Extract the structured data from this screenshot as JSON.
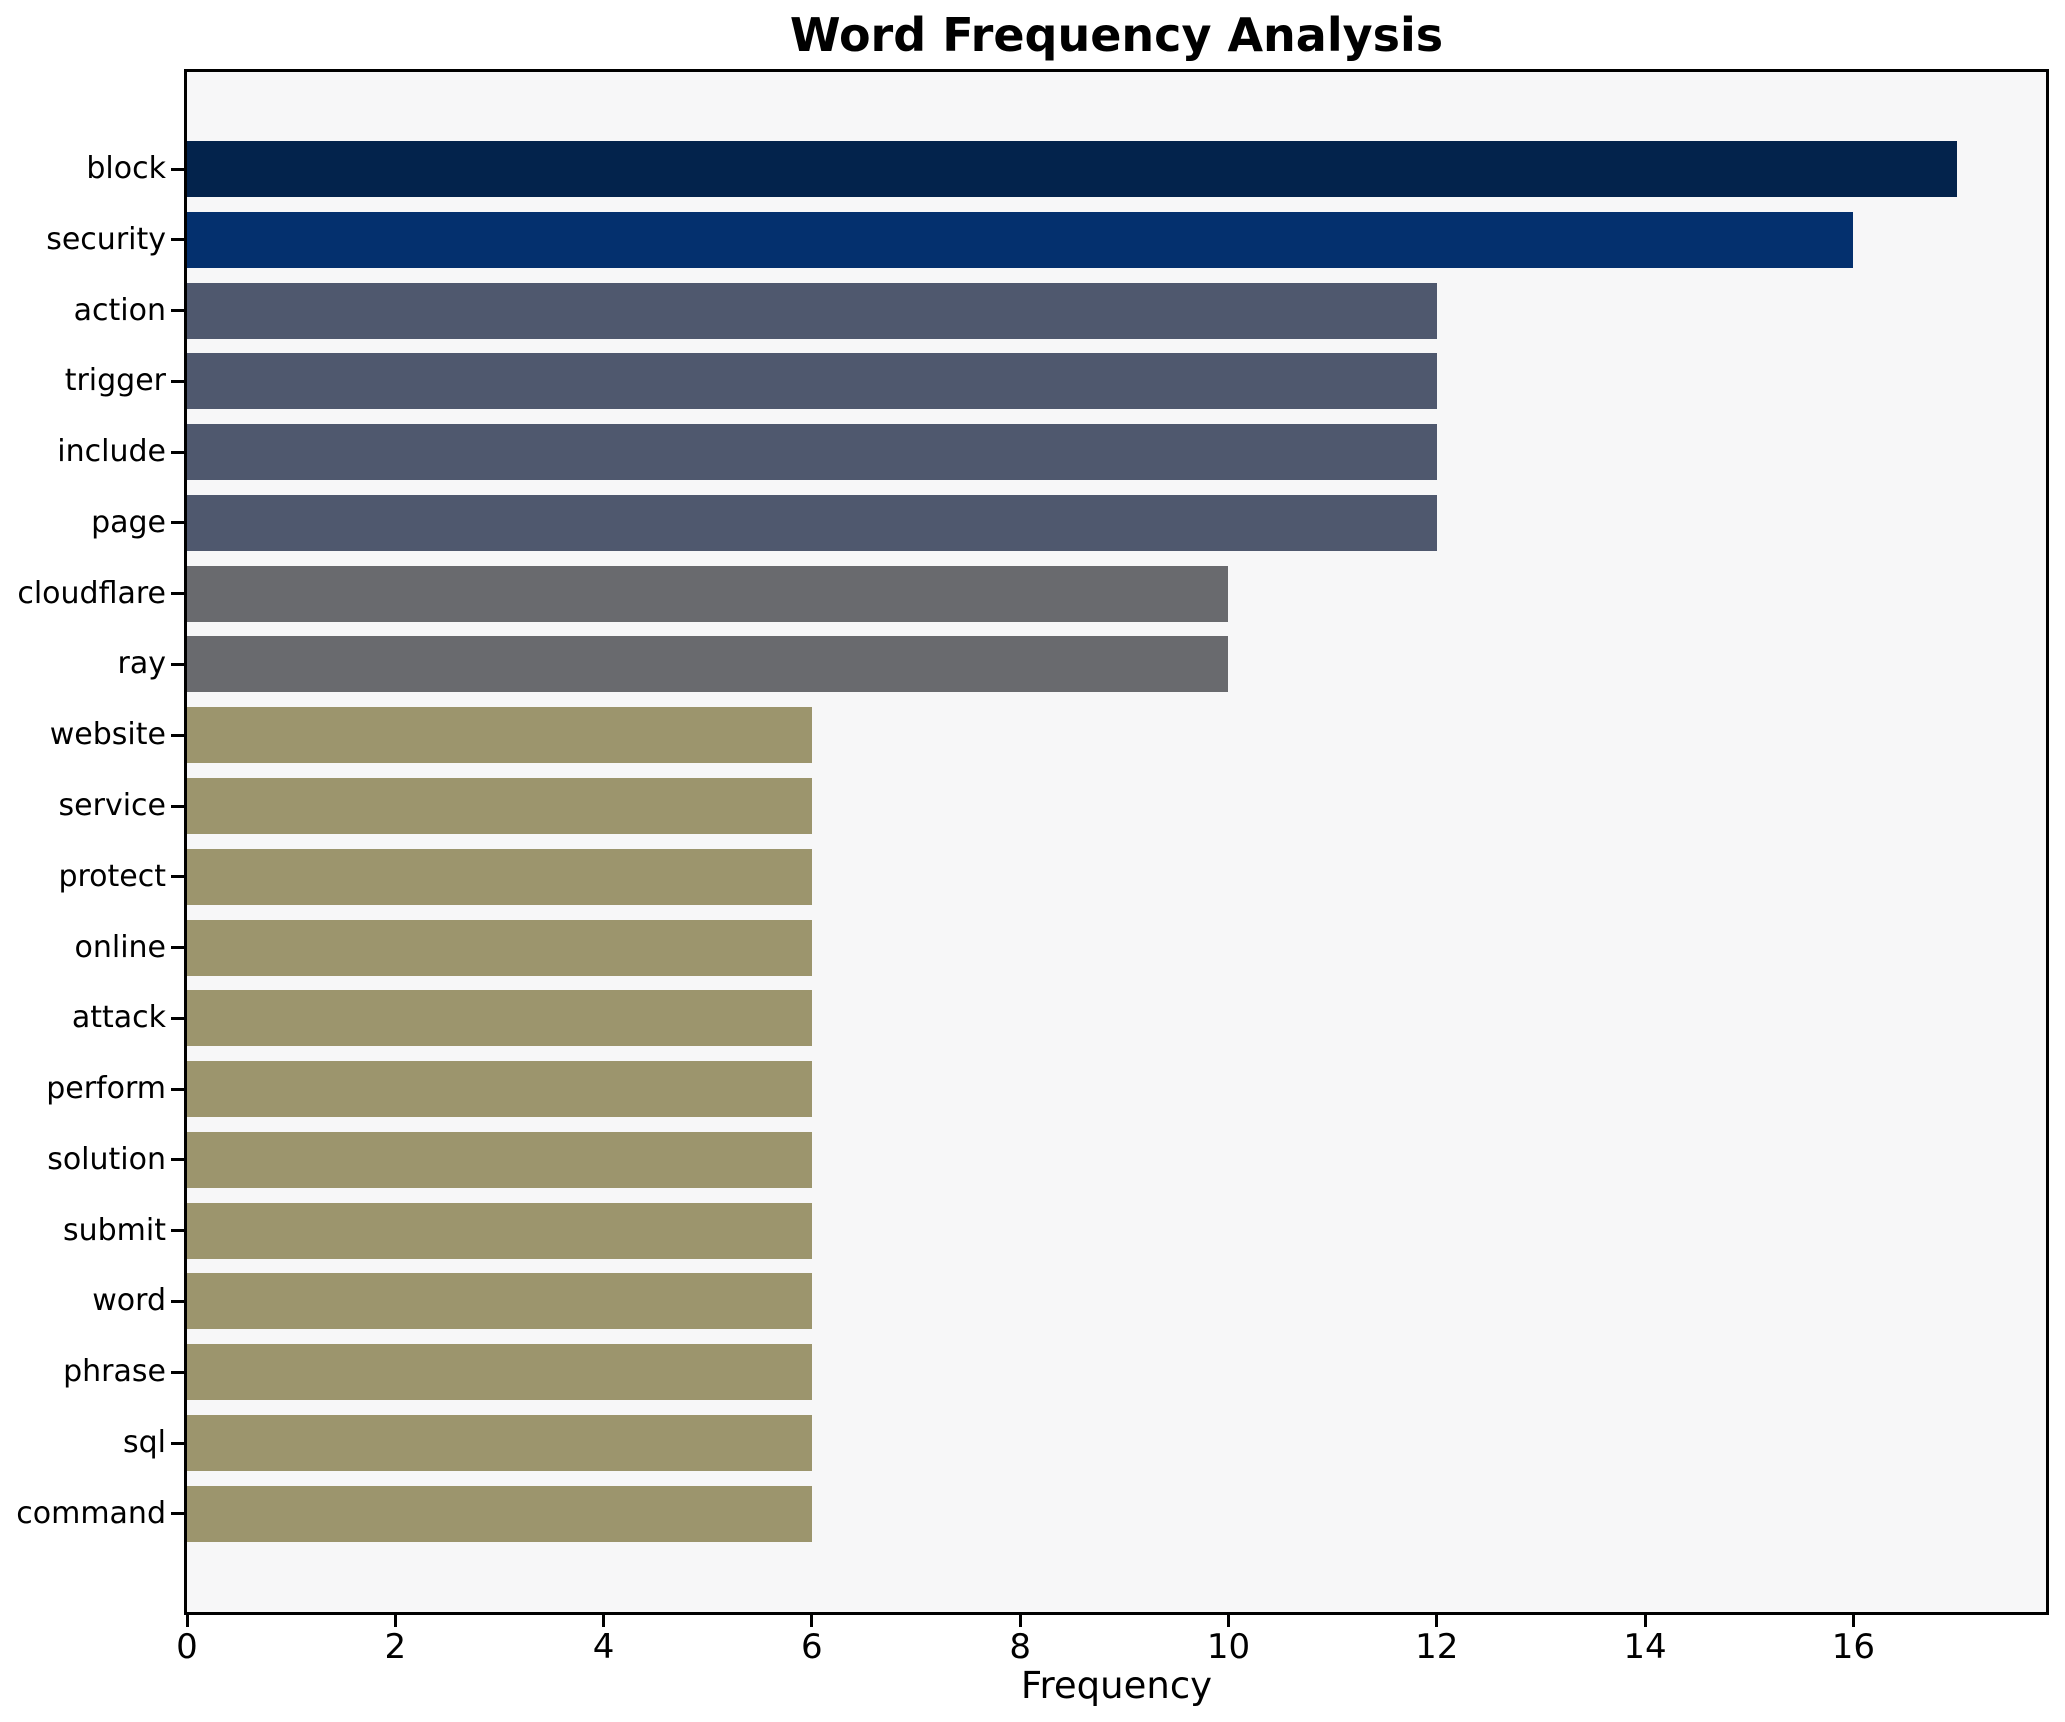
{
  "chart_data": {
    "type": "bar",
    "orientation": "horizontal",
    "title": "Word Frequency Analysis",
    "xlabel": "Frequency",
    "ylabel": "",
    "categories": [
      "block",
      "security",
      "action",
      "trigger",
      "include",
      "page",
      "cloudflare",
      "ray",
      "website",
      "service",
      "protect",
      "online",
      "attack",
      "perform",
      "solution",
      "submit",
      "word",
      "phrase",
      "sql",
      "command"
    ],
    "values": [
      17,
      16,
      12,
      12,
      12,
      12,
      10,
      10,
      6,
      6,
      6,
      6,
      6,
      6,
      6,
      6,
      6,
      6,
      6,
      6
    ],
    "bar_colors": [
      "#03234c",
      "#04306e",
      "#4f586e",
      "#4f586e",
      "#4f586e",
      "#4f586e",
      "#696a6e",
      "#696a6e",
      "#9c956d",
      "#9c956d",
      "#9c956d",
      "#9c956d",
      "#9c956d",
      "#9c956d",
      "#9c956d",
      "#9c956d",
      "#9c956d",
      "#9c956d",
      "#9c956d",
      "#9c956d"
    ],
    "xticks": [
      0,
      2,
      4,
      6,
      8,
      10,
      12,
      14,
      16
    ],
    "xlim": [
      0,
      17.85
    ],
    "grid": false,
    "legend": null,
    "plot_background": "#f7f7f8",
    "figure_background": "#ffffff",
    "text_color": "#000000"
  }
}
